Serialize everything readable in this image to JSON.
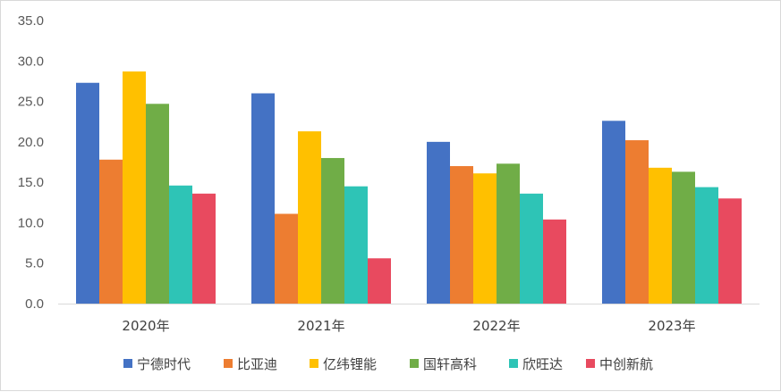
{
  "chart_data": {
    "type": "bar",
    "title": "",
    "xlabel": "",
    "ylabel": "",
    "categories": [
      "2020年",
      "2021年",
      "2022年",
      "2023年"
    ],
    "ylim": [
      0,
      35
    ],
    "yticks": [
      "0.0",
      "5.0",
      "10.0",
      "15.0",
      "20.0",
      "25.0",
      "30.0",
      "35.0"
    ],
    "grid": false,
    "legend_position": "bottom",
    "series": [
      {
        "name": "宁德时代",
        "color": "#4472C4",
        "values": [
          27.3,
          26.0,
          20.0,
          22.6
        ]
      },
      {
        "name": "比亚迪",
        "color": "#ED7D31",
        "values": [
          17.8,
          11.1,
          17.0,
          20.2
        ]
      },
      {
        "name": "亿纬锂能",
        "color": "#FFC000",
        "values": [
          28.7,
          21.3,
          16.1,
          16.8
        ]
      },
      {
        "name": "国轩高科",
        "color": "#70AD47",
        "values": [
          24.7,
          18.0,
          17.3,
          16.3
        ]
      },
      {
        "name": "欣旺达",
        "color": "#2EC4B6",
        "values": [
          14.6,
          14.5,
          13.6,
          14.4
        ]
      },
      {
        "name": "中创新航",
        "color": "#E84A5F",
        "values": [
          13.6,
          5.6,
          10.4,
          13.0
        ]
      }
    ]
  }
}
